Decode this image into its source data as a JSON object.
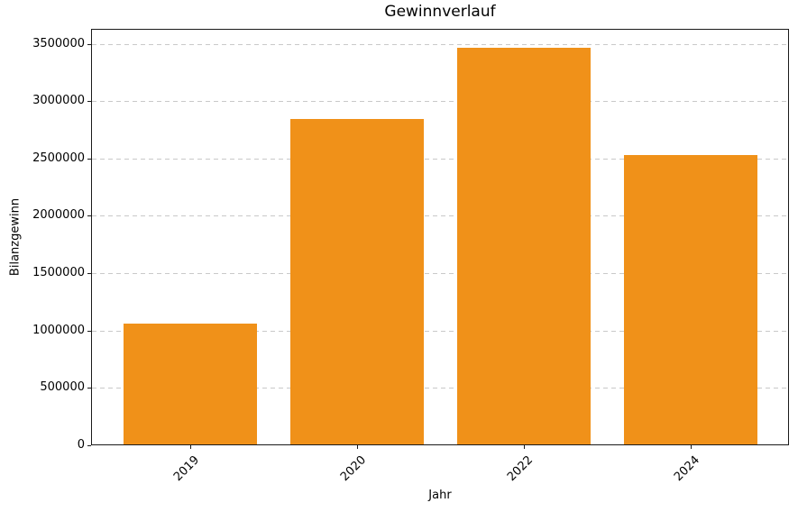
{
  "figure": {
    "background_color": "#ffffff",
    "text_color": "#000000",
    "spine_color": "#1a1a1a"
  },
  "chart_data": {
    "type": "bar",
    "title": "Gewinnverlauf",
    "xlabel": "Jahr",
    "ylabel": "Bilanzgewinn",
    "categories": [
      "2019",
      "2020",
      "2022",
      "2024"
    ],
    "values": [
      1050000,
      2840000,
      3460000,
      2520000
    ],
    "yticks": [
      0,
      500000,
      1000000,
      1500000,
      2000000,
      2500000,
      3000000,
      3500000
    ],
    "ylim": [
      0,
      3630000
    ],
    "bar_color": "#F09119",
    "grid_color": "#c9c9c9",
    "grid_style": "dashed-horizontal",
    "x_tick_rotation_deg": 45,
    "legend": "none"
  }
}
